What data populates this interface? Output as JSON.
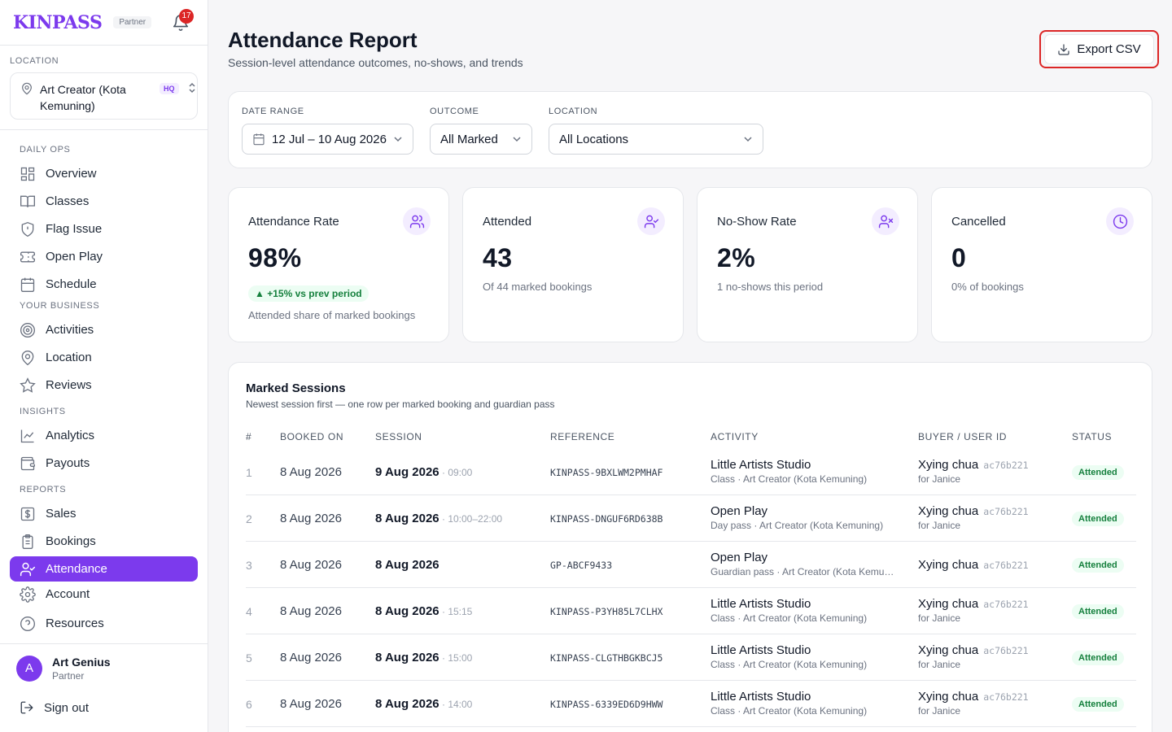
{
  "brand": {
    "logo": "KINPASS",
    "tag": "Partner",
    "notifications": "17"
  },
  "location": {
    "label": "LOCATION",
    "name": "Art Creator (Kota Kemuning)",
    "badge": "HQ"
  },
  "nav": {
    "daily_ops": "DAILY OPS",
    "overview": "Overview",
    "classes": "Classes",
    "flag_issue": "Flag Issue",
    "open_play": "Open Play",
    "schedule": "Schedule",
    "your_business": "YOUR BUSINESS",
    "activities": "Activities",
    "location": "Location",
    "reviews": "Reviews",
    "insights": "INSIGHTS",
    "analytics": "Analytics",
    "payouts": "Payouts",
    "reports": "REPORTS",
    "sales": "Sales",
    "bookings": "Bookings",
    "attendance": "Attendance",
    "account": "Account",
    "resources": "Resources"
  },
  "user": {
    "initial": "A",
    "name": "Art Genius",
    "role": "Partner",
    "sign_out": "Sign out"
  },
  "header": {
    "title": "Attendance Report",
    "subtitle": "Session-level attendance outcomes, no-shows, and trends",
    "export": "Export CSV"
  },
  "filters": {
    "date_label": "DATE RANGE",
    "date_value": "12 Jul – 10 Aug 2026",
    "outcome_label": "OUTCOME",
    "outcome_value": "All Marked",
    "location_label": "LOCATION",
    "location_value": "All Locations"
  },
  "stats": [
    {
      "title": "Attendance Rate",
      "value": "98%",
      "trend": "▲ +15% vs prev period",
      "note": "Attended share of marked bookings"
    },
    {
      "title": "Attended",
      "value": "43",
      "note": "Of 44 marked bookings"
    },
    {
      "title": "No-Show Rate",
      "value": "2%",
      "note": "1 no-shows this period"
    },
    {
      "title": "Cancelled",
      "value": "0",
      "note": "0% of bookings"
    }
  ],
  "sessions": {
    "title": "Marked Sessions",
    "subtitle": "Newest session first — one row per marked booking and guardian pass",
    "columns": [
      "#",
      "BOOKED ON",
      "SESSION",
      "REFERENCE",
      "ACTIVITY",
      "BUYER / USER ID",
      "STATUS"
    ],
    "rows": [
      {
        "num": "1",
        "booked": "8 Aug 2026",
        "date": "9 Aug 2026",
        "time": " · 09:00",
        "ref": "KINPASS-9BXLWM2PMHAF",
        "activity": "Little Artists Studio",
        "activity_sub": "Class · Art Creator (Kota Kemuning)",
        "buyer": "Xying chua",
        "uid": "ac76b221",
        "for": "for Janice",
        "status": "Attended"
      },
      {
        "num": "2",
        "booked": "8 Aug 2026",
        "date": "8 Aug 2026",
        "time": " · 10:00–22:00",
        "ref": "KINPASS-DNGUF6RD638B",
        "activity": "Open Play",
        "activity_sub": "Day pass · Art Creator (Kota Kemuning)",
        "buyer": "Xying chua",
        "uid": "ac76b221",
        "for": "for Janice",
        "status": "Attended"
      },
      {
        "num": "3",
        "booked": "8 Aug 2026",
        "date": "8 Aug 2026",
        "time": "",
        "ref": "GP-ABCF9433",
        "activity": "Open Play",
        "activity_sub": "Guardian pass · Art Creator (Kota Kemu…",
        "buyer": "Xying chua",
        "uid": "ac76b221",
        "for": "",
        "status": "Attended"
      },
      {
        "num": "4",
        "booked": "8 Aug 2026",
        "date": "8 Aug 2026",
        "time": " · 15:15",
        "ref": "KINPASS-P3YH85L7CLHX",
        "activity": "Little Artists Studio",
        "activity_sub": "Class · Art Creator (Kota Kemuning)",
        "buyer": "Xying chua",
        "uid": "ac76b221",
        "for": "for Janice",
        "status": "Attended"
      },
      {
        "num": "5",
        "booked": "8 Aug 2026",
        "date": "8 Aug 2026",
        "time": " · 15:00",
        "ref": "KINPASS-CLGTHBGKBCJ5",
        "activity": "Little Artists Studio",
        "activity_sub": "Class · Art Creator (Kota Kemuning)",
        "buyer": "Xying chua",
        "uid": "ac76b221",
        "for": "for Janice",
        "status": "Attended"
      },
      {
        "num": "6",
        "booked": "8 Aug 2026",
        "date": "8 Aug 2026",
        "time": " · 14:00",
        "ref": "KINPASS-6339ED6D9HWW",
        "activity": "Little Artists Studio",
        "activity_sub": "Class · Art Creator (Kota Kemuning)",
        "buyer": "Xying chua",
        "uid": "ac76b221",
        "for": "for Janice",
        "status": "Attended"
      }
    ]
  },
  "colors": {
    "accent": "#7c3aed",
    "success": "#15803d",
    "alert": "#dc2626"
  }
}
